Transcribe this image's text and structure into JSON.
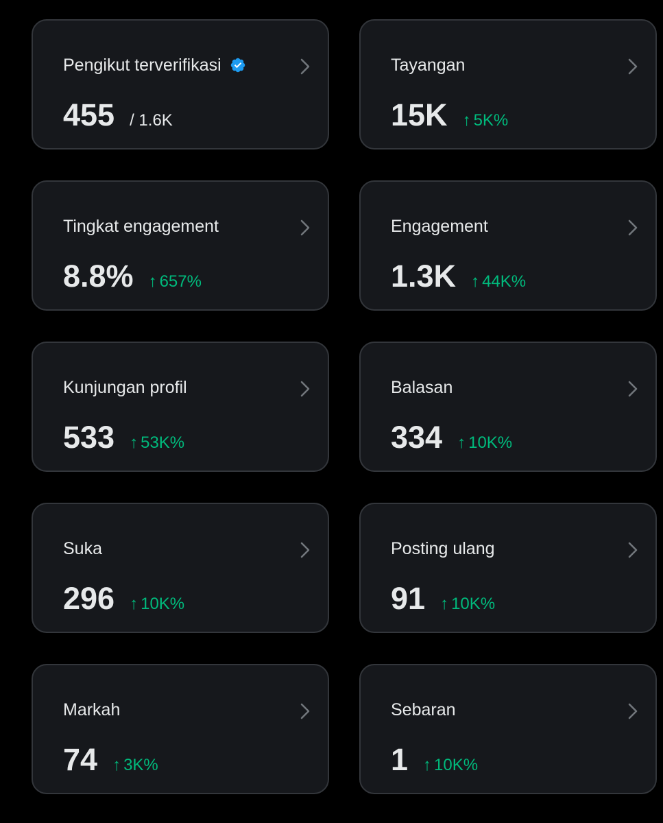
{
  "colors": {
    "background": "#000000",
    "card": "#16181c",
    "card_border": "#33363b",
    "text": "#e7e9ea",
    "positive": "#00ba7c",
    "verified": "#1d9bf0",
    "chevron": "#71767b"
  },
  "arrow_glyph": "↑",
  "cards": [
    {
      "label": "Pengikut terverifikasi",
      "value": "455",
      "sub": "/ 1.6K",
      "verified_icon": "verified-badge-icon"
    },
    {
      "label": "Tayangan",
      "value": "15K",
      "change": "5K%"
    },
    {
      "label": "Tingkat engagement",
      "value": "8.8%",
      "change": "657%"
    },
    {
      "label": "Engagement",
      "value": "1.3K",
      "change": "44K%"
    },
    {
      "label": "Kunjungan profil",
      "value": "533",
      "change": "53K%"
    },
    {
      "label": "Balasan",
      "value": "334",
      "change": "10K%"
    },
    {
      "label": "Suka",
      "value": "296",
      "change": "10K%"
    },
    {
      "label": "Posting ulang",
      "value": "91",
      "change": "10K%"
    },
    {
      "label": "Markah",
      "value": "74",
      "change": "3K%"
    },
    {
      "label": "Sebaran",
      "value": "1",
      "change": "10K%"
    }
  ]
}
